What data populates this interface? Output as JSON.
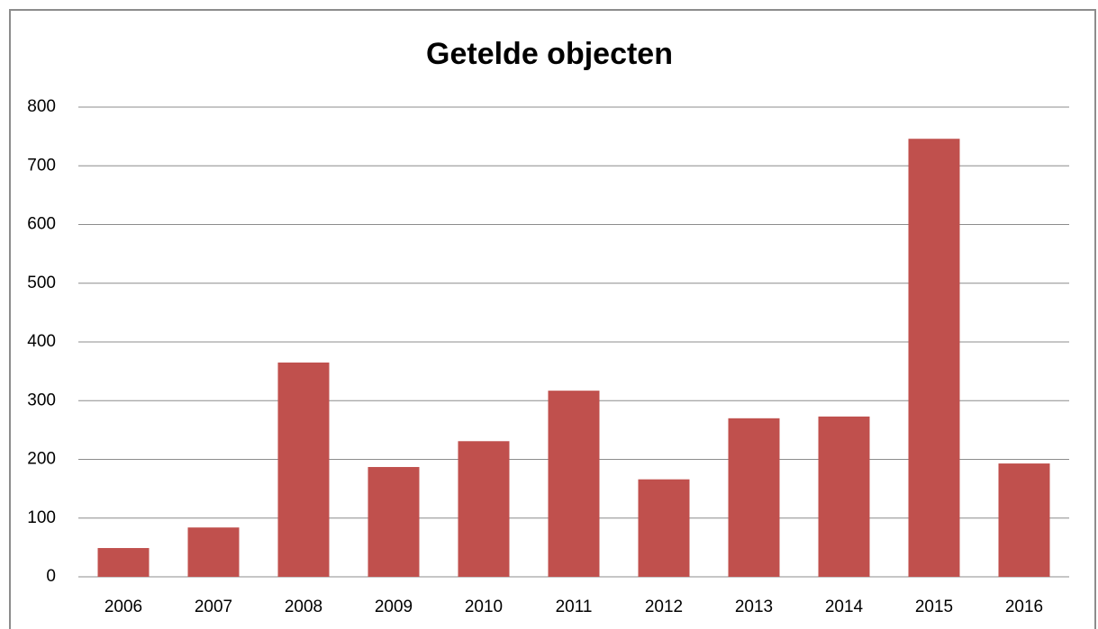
{
  "chart_data": {
    "type": "bar",
    "title": "Getelde objecten",
    "categories": [
      "2006",
      "2007",
      "2008",
      "2009",
      "2010",
      "2011",
      "2012",
      "2013",
      "2014",
      "2015",
      "2016"
    ],
    "values": [
      49,
      84,
      365,
      187,
      231,
      317,
      166,
      270,
      273,
      746,
      193
    ],
    "color": "#c0504d",
    "ylim": [
      0,
      800
    ],
    "yticks": [
      0,
      100,
      200,
      300,
      400,
      500,
      600,
      700,
      800
    ],
    "grid": true
  }
}
